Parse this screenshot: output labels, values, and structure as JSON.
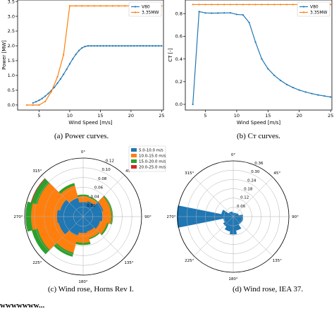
{
  "captions": {
    "a": "(a) Power curves.",
    "b": "(b) Cт curves.",
    "c": "(c) Wind rose, Horns Rev I.",
    "d": "(d) Wind rose, IEA 37."
  },
  "trailing_text": "wwwwwww...",
  "chart_data": [
    {
      "id": "power",
      "type": "line",
      "xlabel": "Wind Speed [m/s]",
      "ylabel": "Power [MW]",
      "xlim": [
        1.5,
        25.3
      ],
      "ylim": [
        -0.17,
        3.55
      ],
      "xticks": [
        5,
        10,
        15,
        20,
        25
      ],
      "yticks": [
        "0.0",
        "0.5",
        "1.0",
        "1.5",
        "2.0",
        "2.5",
        "3.0",
        "3.5"
      ],
      "legend_location": "top-right",
      "series": [
        {
          "name": "V80",
          "color": "#1f77b4",
          "marker": true,
          "x": [
            4,
            4.5,
            5,
            5.5,
            6,
            6.5,
            7,
            7.5,
            8,
            8.5,
            9,
            9.5,
            10,
            10.5,
            11,
            11.5,
            12,
            12.5,
            13,
            13.5,
            14,
            14.5,
            15,
            15.5,
            16,
            16.5,
            17,
            17.5,
            18,
            18.5,
            19,
            19.5,
            20,
            20.5,
            21,
            21.5,
            22,
            22.5,
            23,
            23.5,
            24,
            24.5,
            25
          ],
          "y": [
            0.07,
            0.11,
            0.16,
            0.22,
            0.3,
            0.39,
            0.49,
            0.6,
            0.74,
            0.88,
            1.04,
            1.21,
            1.39,
            1.56,
            1.71,
            1.84,
            1.93,
            1.98,
            2.0,
            2.0,
            2.0,
            2.0,
            2.0,
            2.0,
            2.0,
            2.0,
            2.0,
            2.0,
            2.0,
            2.0,
            2.0,
            2.0,
            2.0,
            2.0,
            2.0,
            2.0,
            2.0,
            2.0,
            2.0,
            2.0,
            2.0,
            2.0,
            2.0
          ]
        },
        {
          "name": "3.35MW",
          "color": "#ff7f0e",
          "marker": true,
          "x": [
            3,
            4,
            5,
            6,
            7,
            8,
            9,
            10,
            11,
            12,
            13,
            14,
            15,
            16,
            17,
            18,
            19,
            20,
            21,
            22,
            23,
            24,
            25
          ],
          "y": [
            0.0,
            0.0,
            0.0,
            0.12,
            0.45,
            0.95,
            1.7,
            3.35,
            3.35,
            3.35,
            3.35,
            3.35,
            3.35,
            3.35,
            3.35,
            3.35,
            3.35,
            3.35,
            3.35,
            3.35,
            3.35,
            3.35,
            3.35
          ]
        }
      ]
    },
    {
      "id": "ct",
      "type": "line",
      "xlabel": "Wind Speed [m/s]",
      "ylabel": "CT [-]",
      "xlim": [
        1.8,
        25.2
      ],
      "ylim": [
        -0.05,
        0.92
      ],
      "xticks": [
        5,
        10,
        15,
        20,
        25
      ],
      "yticks": [
        "0.0",
        "0.2",
        "0.4",
        "0.6",
        "0.8"
      ],
      "legend_location": "top-right",
      "series": [
        {
          "name": "V80",
          "color": "#1f77b4",
          "marker": true,
          "x": [
            3,
            4,
            5,
            6,
            7,
            8,
            9,
            10,
            11,
            12,
            13,
            14,
            15,
            16,
            17,
            18,
            19,
            20,
            21,
            22,
            23,
            24,
            25
          ],
          "y": [
            0.0,
            0.818,
            0.806,
            0.804,
            0.805,
            0.806,
            0.807,
            0.793,
            0.789,
            0.721,
            0.549,
            0.4,
            0.314,
            0.256,
            0.211,
            0.175,
            0.148,
            0.126,
            0.109,
            0.095,
            0.083,
            0.074,
            0.065
          ]
        },
        {
          "name": "3.35MW",
          "color": "#ff7f0e",
          "marker": true,
          "x": [
            3,
            4,
            5,
            6,
            7,
            8,
            9,
            10,
            11,
            12,
            13,
            14,
            15,
            16,
            17,
            18,
            19,
            20,
            21,
            22,
            23,
            24,
            25
          ],
          "y": [
            0.88,
            0.88,
            0.88,
            0.88,
            0.88,
            0.88,
            0.88,
            0.88,
            0.88,
            0.88,
            0.88,
            0.88,
            0.88,
            0.88,
            0.88,
            0.88,
            0.88,
            0.88,
            0.88,
            0.88,
            0.88,
            0.88,
            0.88
          ]
        }
      ]
    },
    {
      "id": "rose-horns",
      "type": "wind-rose",
      "rmax": 0.12,
      "rticks": [
        "0.02",
        "0.04",
        "0.06",
        "0.08",
        "0.10",
        "0.12"
      ],
      "angle_labels": [
        "0°",
        "45°",
        "90°",
        "135°",
        "180°",
        "225°",
        "270°",
        "315°"
      ],
      "directions_deg": [
        0,
        30,
        60,
        90,
        120,
        150,
        180,
        210,
        240,
        270,
        300,
        330
      ],
      "legend_location": "top-right",
      "stacks": [
        {
          "name": "5.0-10.0 m/s",
          "color": "#1f77b4",
          "values": [
            0.03,
            0.033,
            0.043,
            0.04,
            0.036,
            0.032,
            0.034,
            0.041,
            0.052,
            0.054,
            0.049,
            0.04
          ]
        },
        {
          "name": "10.0-15.0 m/s",
          "color": "#ff7f0e",
          "values": [
            0.012,
            0.008,
            0.015,
            0.018,
            0.015,
            0.014,
            0.02,
            0.036,
            0.045,
            0.053,
            0.049,
            0.026
          ]
        },
        {
          "name": "15.0-20.0 m/s",
          "color": "#2ca02c",
          "values": [
            0.003,
            0.002,
            0.003,
            0.003,
            0.003,
            0.002,
            0.004,
            0.008,
            0.012,
            0.011,
            0.012,
            0.005
          ]
        },
        {
          "name": "20.0-25.0 m/s",
          "color": "#d62728",
          "values": [
            0.0,
            0.0,
            0.0,
            0.0,
            0.0,
            0.0,
            0.0,
            0.0,
            0.0,
            0.0,
            0.001,
            0.0
          ]
        }
      ]
    },
    {
      "id": "rose-iea",
      "type": "wind-rose",
      "rmax": 0.36,
      "rticks": [
        "0.06",
        "0.12",
        "0.18",
        "0.24",
        "0.30",
        "0.36"
      ],
      "angle_labels": [
        "0°",
        "45°",
        "90°",
        "135°",
        "180°",
        "225°",
        "270°",
        "315°"
      ],
      "directions_deg": [
        0,
        22.5,
        45,
        67.5,
        90,
        112.5,
        135,
        157.5,
        180,
        202.5,
        225,
        247.5,
        270,
        292.5,
        315,
        337.5
      ],
      "stacks": [
        {
          "name": "",
          "color": "#1f77b4",
          "values": [
            0.025,
            0.024,
            0.029,
            0.036,
            0.063,
            0.065,
            0.063,
            0.092,
            0.115,
            0.098,
            0.078,
            0.065,
            0.364,
            0.078,
            0.036,
            0.033
          ]
        }
      ]
    }
  ]
}
